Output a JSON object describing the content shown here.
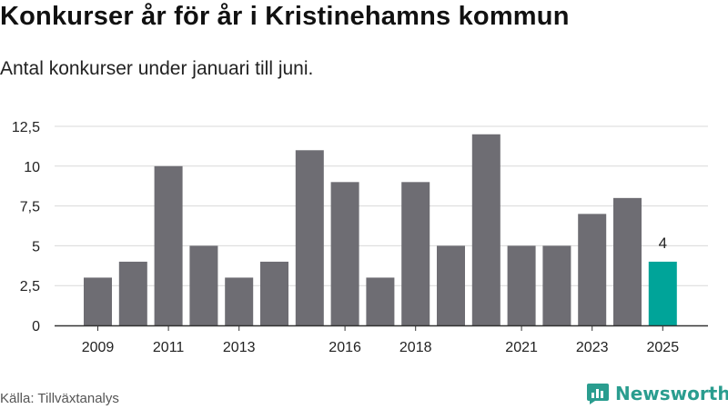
{
  "title": "Konkurser år för år i Kristinehamns kommun",
  "subtitle": "Antal konkurser under januari till juni.",
  "source": "Källa: Tillväxtanalys",
  "brand": {
    "name": "Newsworthy",
    "icon": "newsworthy-logo-icon"
  },
  "colors": {
    "bar": "#6e6d73",
    "highlight": "#00a499",
    "grid": "#d9d9d9",
    "axis": "#333333",
    "text": "#222222"
  },
  "chart_data": {
    "type": "bar",
    "categories": [
      "2009",
      "2010",
      "2011",
      "2012",
      "2013",
      "2014",
      "2015",
      "2016",
      "2017",
      "2018",
      "2019",
      "2020",
      "2021",
      "2022",
      "2023",
      "2024",
      "2025"
    ],
    "values": [
      3,
      4,
      10,
      5,
      3,
      4,
      11,
      9,
      3,
      9,
      5,
      12,
      5,
      5,
      7,
      8,
      4
    ],
    "x_tick_labels": [
      "2009",
      "2011",
      "2013",
      "2016",
      "2018",
      "2021",
      "2023",
      "2025"
    ],
    "y_ticks": [
      "0",
      "2,5",
      "5",
      "7,5",
      "10",
      "12,5"
    ],
    "y_tick_values": [
      0,
      2.5,
      5,
      7.5,
      10,
      12.5
    ],
    "ylim": [
      0,
      12.5
    ],
    "highlight_category": "2025",
    "data_labels": [
      {
        "category": "2025",
        "text": "4"
      }
    ],
    "grid": true,
    "xlabel": "",
    "ylabel": ""
  }
}
